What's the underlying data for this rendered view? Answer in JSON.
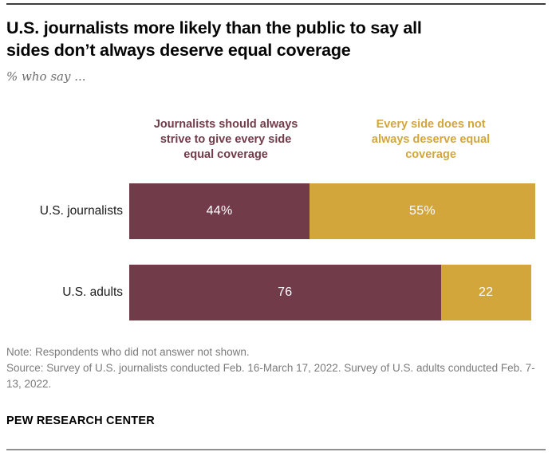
{
  "page": {
    "title_line1": "U.S. journalists more likely than the public to say all",
    "title_line2": "sides don’t always deserve equal coverage",
    "subtitle": "% who say ...",
    "note": "Note: Respondents who did not answer not shown.",
    "source": "Source: Survey of U.S. journalists conducted Feb. 16-March 17, 2022. Survey of U.S. adults conducted Feb. 7-13, 2022.",
    "brand": "PEW RESEARCH CENTER"
  },
  "chart_data": {
    "type": "bar",
    "orientation": "horizontal",
    "stacked": true,
    "title": "U.S. journalists more likely than the public to say all sides don’t always deserve equal coverage",
    "subtitle": "% who say ...",
    "categories": [
      "U.S. journalists",
      "U.S. adults"
    ],
    "series": [
      {
        "name": "Journalists should always strive to give every side equal coverage",
        "color": "#723B4A",
        "values": [
          44,
          76
        ],
        "labels": [
          "44%",
          "76"
        ]
      },
      {
        "name": "Every side does not always deserve equal coverage",
        "color": "#D2A63B",
        "values": [
          55,
          22
        ],
        "labels": [
          "55%",
          "22"
        ]
      }
    ],
    "xlim": [
      0,
      100
    ],
    "grid": "off",
    "axis": "none",
    "legend_position": "top",
    "value_labels_inside": true,
    "value_label_color": "#FFFFFF"
  },
  "colors": {
    "maroon": "#723B4A",
    "gold": "#D2A63B",
    "note_gray": "#7B7B7B",
    "rule_top": "#3D3D3D",
    "rule_bottom": "#909090"
  }
}
